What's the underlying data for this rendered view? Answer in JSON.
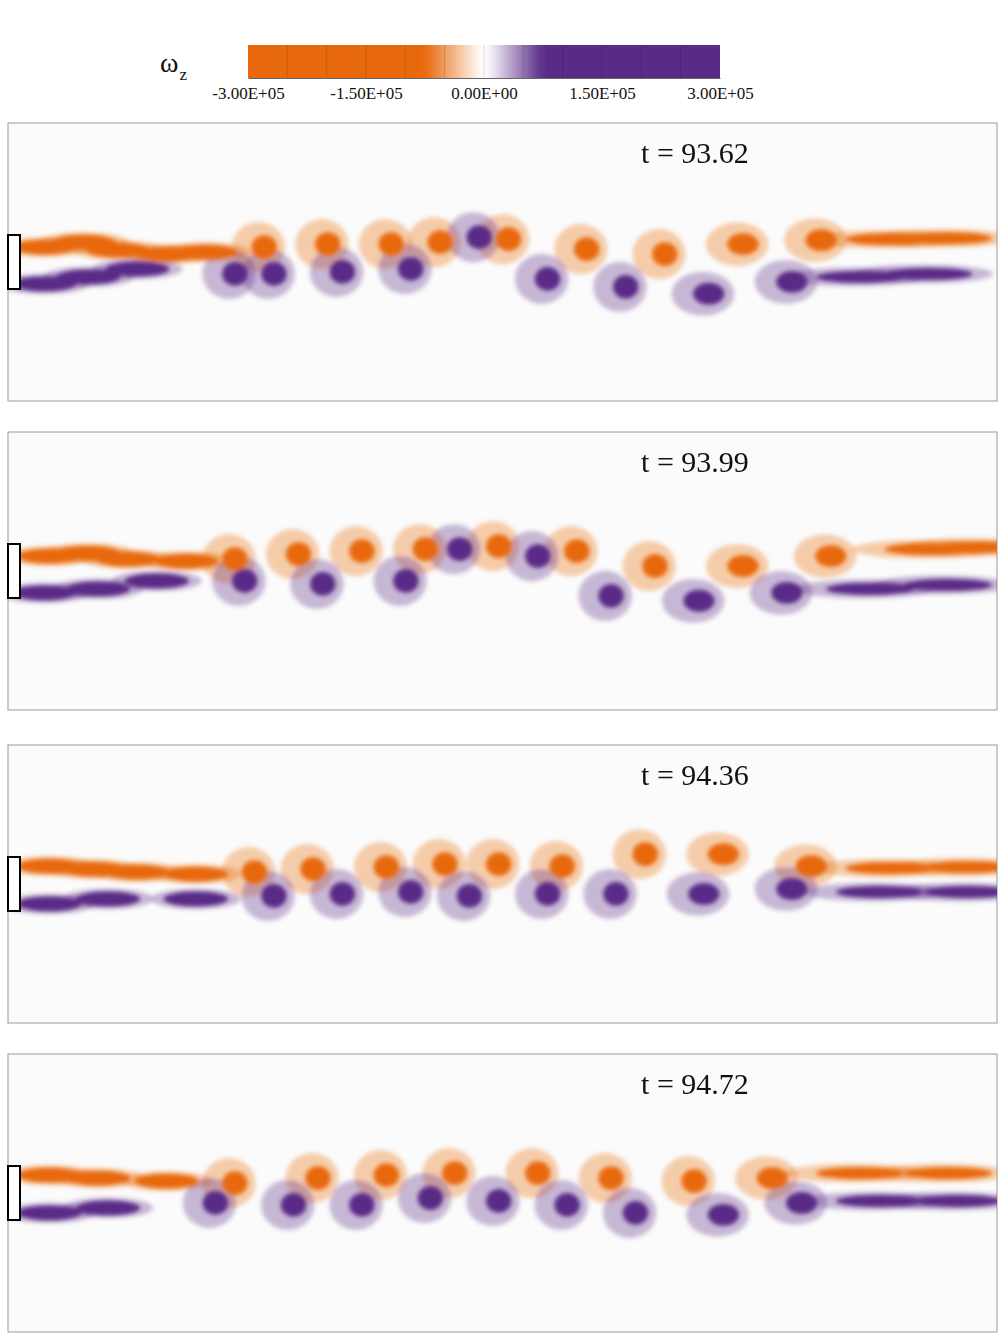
{
  "chart_data": {
    "type": "vorticity_field",
    "xlim": [
      0,
      10
    ],
    "ylim": [
      -1.4,
      1.4
    ],
    "tick_labels": false,
    "colorbar": {
      "title": "ω",
      "title_subscript": "z",
      "range": [
        -300000,
        300000
      ],
      "ticks": [
        {
          "value": -300000,
          "label": "-3.00E+05"
        },
        {
          "value": -150000,
          "label": "-1.50E+05"
        },
        {
          "value": 0,
          "label": "0.00E+00"
        },
        {
          "value": 150000,
          "label": "1.50E+05"
        },
        {
          "value": 300000,
          "label": "3.00E+05"
        }
      ],
      "colors": [
        "#e8690b",
        "#5a2a87"
      ]
    },
    "panels": [
      {
        "time_label": "t = 93.62",
        "x": [
          0.25,
          0.65,
          1.0,
          1.5,
          1.9,
          2.5,
          3.15,
          3.8,
          4.3,
          5.0,
          5.8,
          6.6,
          7.4,
          8.2,
          8.9,
          9.5,
          0.25,
          0.7,
          1.2,
          2.2,
          2.6,
          3.3,
          4.0,
          4.7,
          5.4,
          6.2,
          7.05,
          7.9,
          8.6,
          9.3
        ],
        "y": [
          0.15,
          0.2,
          0.12,
          0.08,
          0.1,
          0.15,
          0.18,
          0.18,
          0.2,
          0.23,
          0.13,
          0.08,
          0.18,
          0.22,
          0.23,
          0.24,
          -0.22,
          -0.15,
          -0.07,
          -0.12,
          -0.12,
          -0.1,
          -0.07,
          0.25,
          -0.17,
          -0.25,
          -0.32,
          -0.2,
          -0.15,
          -0.12
        ],
        "values": [
          -300000,
          -300000,
          -300000,
          -300000,
          -300000,
          -300000,
          -300000,
          -300000,
          -300000,
          -200000,
          -200000,
          -200000,
          -120000,
          -120000,
          -80000,
          -80000,
          300000,
          300000,
          300000,
          300000,
          300000,
          300000,
          300000,
          300000,
          200000,
          200000,
          120000,
          120000,
          80000,
          80000
        ]
      },
      {
        "time_label": "t = 93.99",
        "x": [
          0.3,
          0.7,
          1.1,
          1.7,
          2.2,
          2.85,
          3.5,
          4.15,
          4.9,
          5.7,
          6.5,
          7.4,
          8.3,
          9.3,
          9.8,
          0.25,
          0.8,
          1.4,
          2.3,
          3.1,
          3.95,
          4.5,
          5.3,
          6.05,
          6.95,
          7.85,
          8.7,
          9.5
        ],
        "y": [
          0.15,
          0.18,
          0.12,
          0.1,
          0.12,
          0.17,
          0.2,
          0.22,
          0.25,
          0.2,
          0.05,
          0.05,
          0.15,
          0.22,
          0.24,
          -0.22,
          -0.18,
          -0.1,
          -0.1,
          -0.13,
          -0.1,
          0.22,
          0.15,
          -0.25,
          -0.3,
          -0.22,
          -0.18,
          -0.14
        ],
        "values": [
          -300000,
          -300000,
          -300000,
          -300000,
          -300000,
          -300000,
          -300000,
          -300000,
          -300000,
          -200000,
          -200000,
          -120000,
          -120000,
          -80000,
          -80000,
          300000,
          300000,
          300000,
          300000,
          300000,
          300000,
          300000,
          200000,
          200000,
          120000,
          120000,
          80000,
          80000
        ]
      },
      {
        "time_label": "t = 94.36",
        "x": [
          0.3,
          0.75,
          1.2,
          1.8,
          2.4,
          3.0,
          3.75,
          4.35,
          4.9,
          5.55,
          6.4,
          7.2,
          8.1,
          8.9,
          9.7,
          0.3,
          0.9,
          1.8,
          2.6,
          3.3,
          4.0,
          4.6,
          5.4,
          6.1,
          7.0,
          7.9,
          8.8,
          9.7
        ],
        "y": [
          0.18,
          0.15,
          0.12,
          0.1,
          0.12,
          0.15,
          0.17,
          0.2,
          0.2,
          0.18,
          0.3,
          0.3,
          0.18,
          0.16,
          0.17,
          -0.2,
          -0.15,
          -0.15,
          -0.12,
          -0.1,
          -0.08,
          -0.12,
          -0.1,
          -0.1,
          -0.1,
          -0.05,
          -0.08,
          -0.08
        ],
        "values": [
          -300000,
          -300000,
          -300000,
          -300000,
          -300000,
          -300000,
          -300000,
          -300000,
          -300000,
          -200000,
          -200000,
          -120000,
          -120000,
          -80000,
          -80000,
          300000,
          300000,
          300000,
          300000,
          300000,
          300000,
          300000,
          200000,
          200000,
          120000,
          120000,
          80000,
          80000
        ]
      },
      {
        "time_label": "t = 94.72",
        "x": [
          0.3,
          0.8,
          1.5,
          2.2,
          3.05,
          3.75,
          4.45,
          5.3,
          6.05,
          6.9,
          7.7,
          8.6,
          9.5,
          0.3,
          0.9,
          2.0,
          2.8,
          3.5,
          4.2,
          4.9,
          5.6,
          6.3,
          7.2,
          8.0,
          8.8,
          9.6
        ],
        "y": [
          0.18,
          0.15,
          0.12,
          0.1,
          0.15,
          0.18,
          0.2,
          0.2,
          0.15,
          0.12,
          0.15,
          0.2,
          0.2,
          -0.2,
          -0.15,
          -0.1,
          -0.12,
          -0.12,
          -0.05,
          -0.08,
          -0.12,
          -0.2,
          -0.22,
          -0.1,
          -0.08,
          -0.08
        ],
        "values": [
          -300000,
          -300000,
          -300000,
          -300000,
          -300000,
          -300000,
          -300000,
          -200000,
          -200000,
          -200000,
          -120000,
          -80000,
          -80000,
          300000,
          300000,
          300000,
          300000,
          300000,
          300000,
          300000,
          200000,
          200000,
          120000,
          120000,
          80000,
          80000
        ]
      }
    ]
  }
}
